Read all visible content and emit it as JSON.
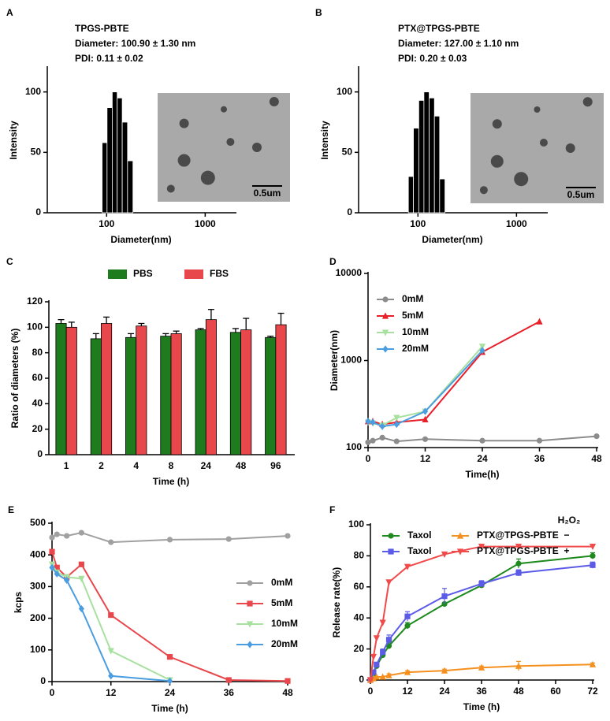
{
  "chart_data": [
    {
      "type": "histogram",
      "panel": "A",
      "title": "TPGS-PBTE",
      "annotations": [
        "Diameter: 100.90 ± 1.30 nm",
        "PDI: 0.11 ± 0.02"
      ],
      "inset_label": "0.5um",
      "x_label": "Diameter(nm)",
      "y_label": "Intensity",
      "xscale": "log",
      "bins": [
        90,
        101,
        114,
        128,
        144,
        163,
        185
      ],
      "values": [
        58,
        87,
        100,
        95,
        75,
        43
      ],
      "color": "#000000",
      "xlim": [
        25,
        2000
      ],
      "xticks": [
        100,
        1000
      ],
      "ylim": [
        0,
        120
      ],
      "yticks": [
        0,
        50,
        100
      ]
    },
    {
      "type": "histogram",
      "panel": "B",
      "title": "PTX@TPGS-PBTE",
      "annotations": [
        "Diameter: 127.00 ± 1.10 nm",
        "PDI: 0.20 ± 0.03"
      ],
      "inset_label": "0.5um",
      "x_label": "Diameter(nm)",
      "y_label": "Intensity",
      "xscale": "log",
      "bins": [
        80,
        90,
        102,
        115,
        130,
        147,
        166,
        188
      ],
      "values": [
        30,
        70,
        93,
        100,
        95,
        80,
        28
      ],
      "color": "#000000",
      "xlim": [
        25,
        2000
      ],
      "xticks": [
        100,
        1000
      ],
      "ylim": [
        0,
        120
      ],
      "yticks": [
        0,
        50,
        100
      ]
    },
    {
      "type": "bar",
      "panel": "C",
      "x_label": "Time (h)",
      "y_label": "Ratio of diameters (%)",
      "legend": "top",
      "categories": [
        "1",
        "2",
        "4",
        "8",
        "24",
        "48",
        "96"
      ],
      "series": [
        {
          "name": "PBS",
          "color": "#1e7b1e",
          "values": [
            103,
            91,
            92,
            93,
            98,
            96,
            92
          ],
          "errors": [
            3,
            4,
            3,
            2,
            1,
            3,
            1
          ]
        },
        {
          "name": "FBS",
          "color": "#e8474c",
          "values": [
            100,
            103,
            101,
            95,
            106,
            98,
            102
          ],
          "errors": [
            4,
            5,
            2,
            2,
            8,
            9,
            9
          ]
        }
      ],
      "ylim": [
        0,
        120
      ],
      "yticks": [
        0,
        20,
        40,
        60,
        80,
        100,
        120
      ]
    },
    {
      "type": "line",
      "panel": "D",
      "x_label": "Time(h)",
      "y_label": "Diameter(nm)",
      "yscale": "log",
      "legend": "upper-left",
      "series": [
        {
          "name": "0mM",
          "color": "#8c8c8c",
          "marker": "circle",
          "x": [
            0,
            1,
            3,
            6,
            12,
            24,
            36,
            48
          ],
          "values": [
            115,
            120,
            130,
            118,
            125,
            120,
            120,
            135
          ]
        },
        {
          "name": "5mM",
          "color": "#e8202a",
          "marker": "triangle",
          "x": [
            0,
            1,
            3,
            6,
            12,
            24,
            36
          ],
          "values": [
            200,
            200,
            185,
            195,
            210,
            1250,
            2800
          ]
        },
        {
          "name": "10mM",
          "color": "#a8e0a0",
          "marker": "triangle-down",
          "x": [
            0,
            1,
            3,
            6,
            12,
            24
          ],
          "values": [
            195,
            190,
            180,
            220,
            260,
            1450
          ]
        },
        {
          "name": "20mM",
          "color": "#4a9de0",
          "marker": "diamond",
          "x": [
            0,
            1,
            3,
            6,
            12,
            24
          ],
          "values": [
            200,
            195,
            175,
            185,
            260,
            1300
          ]
        }
      ],
      "xlim": [
        0,
        48
      ],
      "xticks": [
        0,
        12,
        24,
        36,
        48
      ],
      "ylim": [
        100,
        10000
      ],
      "yticks": [
        100,
        1000,
        10000
      ]
    },
    {
      "type": "line",
      "panel": "E",
      "x_label": "Time (h)",
      "y_label": "kcps",
      "legend": "right",
      "series": [
        {
          "name": "0mM",
          "color": "#a0a0a0",
          "marker": "circle",
          "x": [
            0,
            1,
            3,
            6,
            12,
            24,
            36,
            48
          ],
          "values": [
            455,
            465,
            460,
            470,
            440,
            448,
            450,
            460
          ]
        },
        {
          "name": "5mM",
          "color": "#e8474c",
          "marker": "square",
          "x": [
            0,
            1,
            3,
            6,
            12,
            24,
            36,
            48
          ],
          "values": [
            410,
            360,
            330,
            370,
            210,
            78,
            5,
            2
          ]
        },
        {
          "name": "10mM",
          "color": "#a8e0a0",
          "marker": "triangle-down",
          "x": [
            0,
            1,
            3,
            6,
            12,
            24
          ],
          "values": [
            370,
            345,
            330,
            325,
            97,
            5
          ]
        },
        {
          "name": "20mM",
          "color": "#4a9de0",
          "marker": "diamond",
          "x": [
            0,
            1,
            3,
            6,
            12,
            24
          ],
          "values": [
            360,
            340,
            320,
            230,
            18,
            2
          ]
        }
      ],
      "xlim": [
        0,
        48
      ],
      "xticks": [
        0,
        12,
        24,
        36,
        48
      ],
      "ylim": [
        0,
        500
      ],
      "yticks": [
        0,
        100,
        200,
        300,
        400,
        500
      ]
    },
    {
      "type": "line",
      "panel": "F",
      "x_label": "Time (h)",
      "y_label": "Release rate(%)",
      "legend": "top",
      "legend_title": "H₂O₂",
      "legend_conditions": [
        "−",
        "+"
      ],
      "series": [
        {
          "name": "Taxol",
          "color": "#1e8a1e",
          "marker": "circle",
          "x": [
            0,
            1,
            2,
            4,
            6,
            12,
            24,
            36,
            48,
            72
          ],
          "values": [
            0,
            4,
            9,
            16,
            22,
            35,
            49,
            61,
            75,
            80
          ],
          "errors": [
            0,
            1,
            1,
            1,
            2,
            2,
            1,
            1,
            3,
            2
          ]
        },
        {
          "name": "Taxol",
          "color": "#5b5be8",
          "marker": "square",
          "x": [
            0,
            1,
            2,
            4,
            6,
            12,
            24,
            36,
            48,
            72
          ],
          "values": [
            0,
            5,
            10,
            18,
            26,
            41,
            54,
            62,
            69,
            74
          ],
          "errors": [
            0,
            1,
            1,
            2,
            3,
            3,
            5,
            2,
            2,
            2
          ]
        },
        {
          "name": "PTX@TPGS-PBTE",
          "color": "#f5901e",
          "marker": "triangle",
          "x": [
            0,
            1,
            2,
            4,
            6,
            12,
            24,
            36,
            48,
            72
          ],
          "values": [
            0,
            1,
            2,
            2,
            3,
            5,
            6,
            8,
            9,
            10
          ],
          "errors": [
            0,
            0,
            0,
            0,
            1,
            1,
            1,
            1,
            3,
            1
          ]
        },
        {
          "name": "PTX@TPGS-PBTE",
          "color": "#f04a4a",
          "marker": "triangle-down",
          "x": [
            0,
            1,
            2,
            4,
            6,
            12,
            24,
            36,
            48,
            72
          ],
          "values": [
            0,
            15,
            27,
            37,
            63,
            73,
            81,
            86,
            86,
            86
          ],
          "errors": [
            0,
            1,
            1,
            1,
            1,
            1,
            1,
            1,
            1,
            1
          ]
        }
      ],
      "xlim": [
        0,
        72
      ],
      "xticks": [
        0,
        12,
        24,
        36,
        48,
        60,
        72
      ],
      "ylim": [
        0,
        100
      ],
      "yticks": [
        0,
        20,
        40,
        60,
        80,
        100
      ]
    }
  ]
}
